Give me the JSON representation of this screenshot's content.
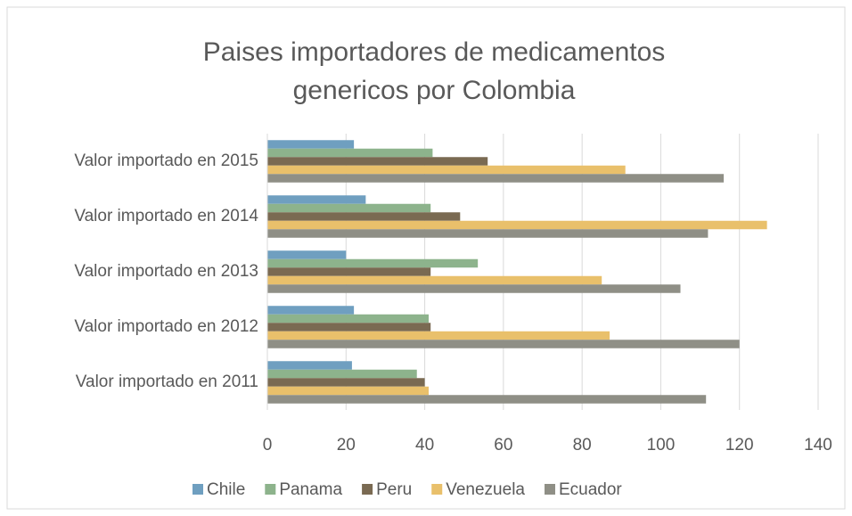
{
  "chart_data": {
    "type": "hbar",
    "title": [
      "Paises importadores de medicamentos",
      "genericos por Colombia"
    ],
    "categories": [
      "Valor importado en 2015",
      "Valor importado en 2014",
      "Valor importado en 2013",
      "Valor importado en 2012",
      "Valor importado en 2011"
    ],
    "series": [
      {
        "name": "Chile",
        "color": "#6f9fc0",
        "values": [
          22,
          25,
          20,
          22,
          21.5
        ]
      },
      {
        "name": "Panama",
        "color": "#8db38c",
        "values": [
          42,
          41.5,
          53.5,
          41,
          38
        ]
      },
      {
        "name": "Peru",
        "color": "#7a6a52",
        "values": [
          56,
          49,
          41.5,
          41.5,
          40
        ]
      },
      {
        "name": "Venezuela",
        "color": "#e9c06b",
        "values": [
          91,
          127,
          85,
          87,
          41
        ]
      },
      {
        "name": "Ecuador",
        "color": "#8f8f86",
        "values": [
          116,
          112,
          105,
          120,
          111.5
        ]
      }
    ],
    "xlim": [
      0,
      140
    ],
    "xticks": [
      0,
      20,
      40,
      60,
      80,
      100,
      120,
      140
    ],
    "grid": true,
    "legend": "bottom"
  }
}
